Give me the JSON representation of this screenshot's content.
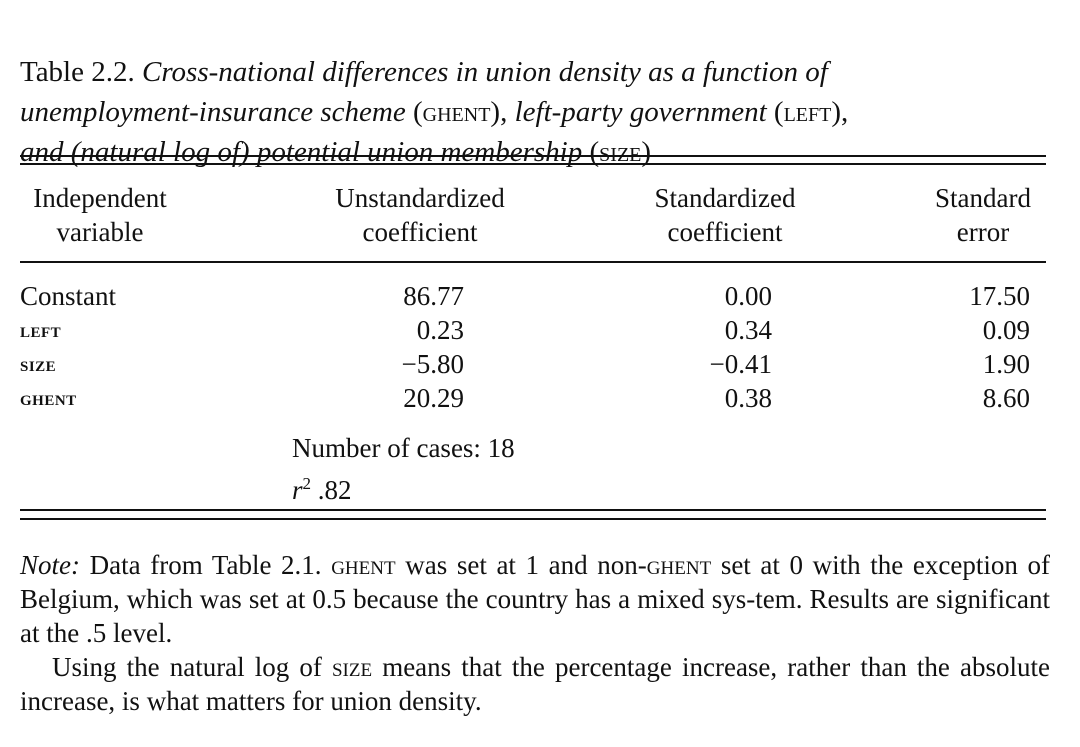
{
  "caption": {
    "label": "Table 2.2.",
    "parts": [
      {
        "t": " Cross-national differences in union density as a function of\nunemployment-insurance scheme ",
        "it": true
      },
      {
        "t": "(GHENT), ",
        "sc": true
      },
      {
        "t": "left-party government ",
        "it": true
      },
      {
        "t": "(LEFT),",
        "sc": true
      },
      {
        "t": "\nand (natural log of) potential union membership ",
        "it": true
      },
      {
        "t": "(SIZE)",
        "sc": true
      }
    ]
  },
  "table": {
    "headers": [
      "Independent\nvariable",
      "Unstandardized\ncoefficient",
      "Standardized\ncoefficient",
      "Standard\nerror"
    ],
    "rows": [
      {
        "variable": "Constant",
        "unstd": "86.77",
        "std": "0.00",
        "se": "17.50"
      },
      {
        "variable": "LEFT",
        "unstd": "0.23",
        "std": "0.34",
        "se": "0.09"
      },
      {
        "variable": "SIZE",
        "unstd": "−5.80",
        "std": "−0.41",
        "se": "1.90"
      },
      {
        "variable": "GHENT",
        "unstd": "20.29",
        "std": "0.38",
        "se": "8.60"
      }
    ],
    "cases_label": "Number of cases: 18",
    "r2_symbol": "r",
    "r2_sup": "2",
    "r2_value": " .82"
  },
  "note": {
    "label": "Note:",
    "p1": [
      {
        "t": " Data from Table 2.1. "
      },
      {
        "t": "GHENT",
        "sc": true
      },
      {
        "t": " was set at 1 and non-"
      },
      {
        "t": "GHENT",
        "sc": true
      },
      {
        "t": " set at 0 with the exception of Belgium, which was set at 0.5 because the country has a mixed sys-tem. Results are significant at the .5 level."
      }
    ],
    "p2": [
      {
        "t": "Using the natural log of "
      },
      {
        "t": "SIZE",
        "sc": true
      },
      {
        "t": " means that the percentage increase, rather than the absolute increase, is what matters for union density."
      }
    ]
  }
}
